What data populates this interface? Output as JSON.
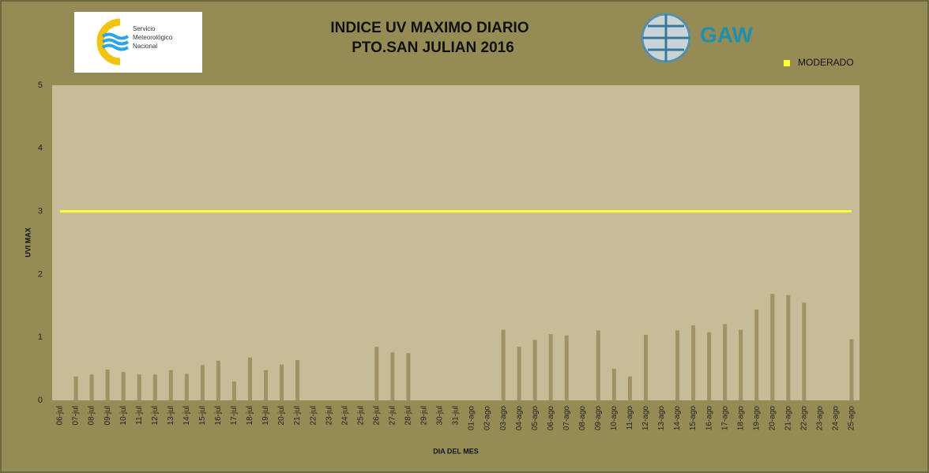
{
  "header": {
    "logo_lines": [
      "Servicio",
      "Meteorológico",
      "Nacional"
    ],
    "gaw": "GAW"
  },
  "chart_data": {
    "type": "bar",
    "title": "INDICE UV MAXIMO DIARIO",
    "subtitle": "PTO.SAN JULIAN 2016",
    "y_label": "UVI MAX",
    "x_label": "DIA DEL MES",
    "categories": [
      "06-jul",
      "07-jul",
      "08-jul",
      "09-jul",
      "10-jul",
      "11-jul",
      "12-jul",
      "13-jul",
      "14-jul",
      "15-jul",
      "16-jul",
      "17-jul",
      "18-jul",
      "19-jul",
      "20-jul",
      "21-jul",
      "22-jul",
      "23-jul",
      "24-jul",
      "25-jul",
      "26-jul",
      "27-jul",
      "28-jul",
      "29-jul",
      "30-jul",
      "31-jul",
      "01-ago",
      "02-ago",
      "03-ago",
      "04-ago",
      "05-ago",
      "06-ago",
      "07-ago",
      "08-ago",
      "09-ago",
      "10-ago",
      "11-ago",
      "12-ago",
      "13-ago",
      "14-ago",
      "15-ago",
      "16-ago",
      "17-ago",
      "18-ago",
      "19-ago",
      "20-ago",
      "21-ago",
      "22-ago",
      "23-ago",
      "24-ago",
      "25-ago"
    ],
    "series": [
      {
        "type": "bar",
        "color": "#a09262",
        "values": [
          null,
          0.38,
          0.41,
          0.49,
          0.45,
          0.41,
          0.41,
          0.48,
          0.42,
          0.56,
          0.63,
          0.3,
          0.68,
          0.48,
          0.57,
          0.64,
          null,
          null,
          null,
          null,
          0.85,
          0.76,
          0.75,
          null,
          null,
          null,
          null,
          null,
          1.12,
          0.85,
          0.96,
          1.05,
          1.03,
          null,
          1.11,
          0.5,
          0.38,
          1.04,
          null,
          1.11,
          1.19,
          1.08,
          1.21,
          1.12,
          1.44,
          1.69,
          1.67,
          1.55,
          null,
          null,
          0.97
        ]
      },
      {
        "type": "line",
        "name": "MODERADO",
        "color": "#ffff33",
        "values": [
          3,
          3,
          3,
          3,
          3,
          3,
          3,
          3,
          3,
          3,
          3,
          3,
          3,
          3,
          3,
          3,
          3,
          3,
          3,
          3,
          3,
          3,
          3,
          3,
          3,
          3,
          3,
          3,
          3,
          3,
          3,
          3,
          3,
          3,
          3,
          3,
          3,
          3,
          3,
          3,
          3,
          3,
          3,
          3,
          3,
          3,
          3,
          3,
          3,
          3,
          3
        ]
      }
    ],
    "ylim": [
      0,
      5
    ],
    "yticks": [
      0,
      1,
      2,
      3,
      4,
      5
    ],
    "grid": false,
    "legend": "top-right"
  }
}
